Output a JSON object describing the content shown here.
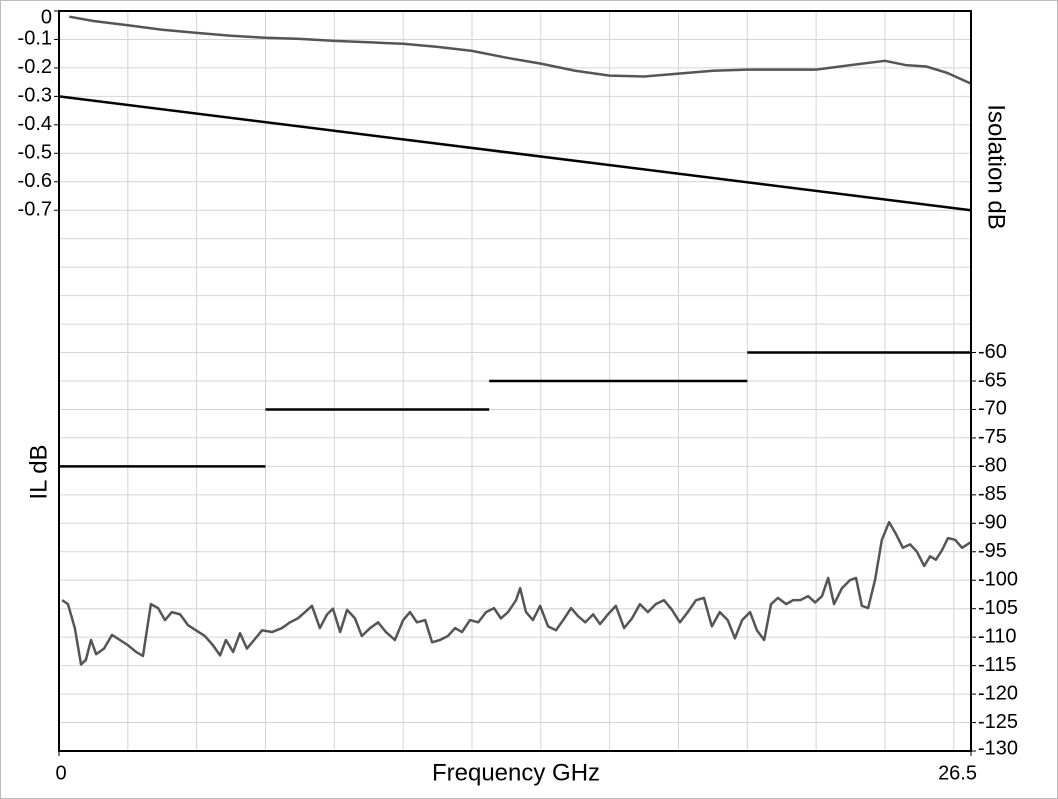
{
  "chart_data": {
    "type": "line",
    "x_label": "Frequency GHz",
    "y_label": "IL dB",
    "y2_label": "Isolation dB",
    "xlim": [
      0,
      26.5
    ],
    "xticks": [
      0,
      26.5
    ],
    "ylim": [
      -2.6,
      0
    ],
    "yticks": [
      0,
      -0.1,
      -0.2,
      -0.3,
      -0.4,
      -0.5,
      -0.6,
      -0.7
    ],
    "y2lim": [
      -130,
      0
    ],
    "y2ticks": [
      -60,
      -65,
      -70,
      -75,
      -80,
      -85,
      -90,
      -95,
      -100,
      -105,
      -110,
      -115,
      -120,
      -125,
      -130
    ],
    "grid": true,
    "xgrid": [
      2,
      4,
      6,
      8,
      10,
      12,
      14,
      16,
      18,
      20,
      22,
      24,
      26
    ],
    "y2grid": [
      -125,
      -120,
      -115,
      -110,
      -105,
      -100,
      -95,
      -90,
      -85,
      -80,
      -75,
      -70,
      -65,
      -60,
      -55,
      -50,
      -45,
      -40,
      -35,
      -30,
      -25,
      -20,
      -15,
      -10,
      -5
    ],
    "series": [
      {
        "color": "#555555",
        "x": [
          0.3,
          1,
          2,
          3,
          4,
          5,
          6,
          7,
          8,
          9,
          10,
          11,
          12,
          13,
          14,
          15,
          16,
          17,
          18,
          19,
          20,
          21,
          22,
          23,
          24,
          24.6,
          25.2,
          25.8,
          26.5
        ],
        "values": [
          -0.02,
          -0.035,
          -0.05,
          -0.066,
          -0.077,
          -0.087,
          -0.094,
          -0.098,
          -0.105,
          -0.11,
          -0.115,
          -0.126,
          -0.14,
          -0.164,
          -0.185,
          -0.21,
          -0.227,
          -0.23,
          -0.22,
          -0.21,
          -0.206,
          -0.206,
          -0.206,
          -0.19,
          -0.175,
          -0.19,
          -0.195,
          -0.217,
          -0.255
        ]
      },
      {
        "color": "#000000",
        "x": [
          0,
          26.5
        ],
        "values": [
          -0.3,
          -0.7
        ]
      },
      {
        "color": "#000000",
        "axis": "y2",
        "x": [
          0,
          6,
          null,
          6,
          12.5,
          null,
          12.5,
          20,
          null,
          20,
          26.5
        ],
        "values": [
          -80,
          -80,
          null,
          -70,
          -70,
          null,
          -65,
          -65,
          null,
          -60,
          -60
        ]
      },
      {
        "color": "#555555",
        "axis": "y2",
        "x": [
          0.09,
          0.26,
          0.46,
          0.64,
          0.78,
          0.93,
          1.08,
          1.31,
          1.54,
          1.77,
          2.0,
          2.24,
          2.44,
          2.67,
          2.88,
          3.08,
          3.28,
          3.52,
          3.75,
          3.98,
          4.24,
          4.47,
          4.68,
          4.85,
          5.06,
          5.26,
          5.46,
          5.67,
          5.9,
          6.19,
          6.48,
          6.71,
          6.94,
          7.15,
          7.35,
          7.58,
          7.79,
          7.96,
          8.17,
          8.37,
          8.6,
          8.8,
          9.04,
          9.27,
          9.5,
          9.76,
          10.0,
          10.2,
          10.4,
          10.64,
          10.84,
          11.07,
          11.3,
          11.51,
          11.71,
          11.94,
          12.18,
          12.41,
          12.64,
          12.84,
          13.05,
          13.28,
          13.4,
          13.57,
          13.77,
          13.98,
          14.21,
          14.44,
          14.65,
          14.88,
          15.08,
          15.29,
          15.52,
          15.72,
          15.95,
          16.18,
          16.42,
          16.65,
          16.88,
          17.11,
          17.34,
          17.58,
          17.81,
          18.04,
          18.27,
          18.51,
          18.74,
          18.97,
          19.2,
          19.43,
          19.64,
          19.85,
          20.08,
          20.28,
          20.49,
          20.69,
          20.89,
          21.13,
          21.33,
          21.54,
          21.77,
          21.97,
          22.17,
          22.35,
          22.52,
          22.75,
          22.98,
          23.16,
          23.33,
          23.51,
          23.71,
          23.91,
          24.12,
          24.32,
          24.52,
          24.73,
          24.93,
          25.14,
          25.31,
          25.48,
          25.66,
          25.83,
          26.04,
          26.24,
          26.5
        ],
        "values": [
          -103.5,
          -104.2,
          -108.4,
          -114.8,
          -114,
          -110.5,
          -113,
          -112,
          -109.6,
          -110.5,
          -111.4,
          -112.6,
          -113.3,
          -104.2,
          -104.9,
          -107,
          -105.6,
          -106,
          -107.9,
          -108.8,
          -109.8,
          -111.4,
          -113.2,
          -110.5,
          -112.6,
          -109.3,
          -112,
          -110.5,
          -108.8,
          -109.1,
          -108.4,
          -107.4,
          -106.7,
          -105.6,
          -104.5,
          -108.4,
          -106,
          -105,
          -109.1,
          -105.2,
          -106.7,
          -109.8,
          -108.4,
          -107.4,
          -109.1,
          -110.5,
          -107,
          -105.6,
          -107.4,
          -107,
          -110.9,
          -110.5,
          -109.8,
          -108.4,
          -109.1,
          -107,
          -107.4,
          -105.6,
          -104.9,
          -106.7,
          -105.6,
          -103.5,
          -101.4,
          -105.6,
          -107,
          -104.5,
          -108.1,
          -108.8,
          -107,
          -104.9,
          -106.3,
          -107.4,
          -106,
          -107.7,
          -106,
          -104.5,
          -108.4,
          -106.7,
          -104.2,
          -105.6,
          -104.2,
          -103.5,
          -105.2,
          -107.4,
          -105.6,
          -103.5,
          -103.1,
          -108.1,
          -105.6,
          -107,
          -110.2,
          -107,
          -105.6,
          -108.8,
          -110.5,
          -104.2,
          -103.1,
          -104.2,
          -103.5,
          -103.5,
          -102.8,
          -103.9,
          -102.8,
          -99.6,
          -104.2,
          -101.4,
          -100,
          -99.6,
          -104.5,
          -104.9,
          -100,
          -92.9,
          -89.8,
          -91.9,
          -94.3,
          -93.7,
          -95,
          -97.5,
          -95.8,
          -96.4,
          -94.7,
          -92.6,
          -92.9,
          -94.3,
          -93.3
        ]
      }
    ]
  }
}
